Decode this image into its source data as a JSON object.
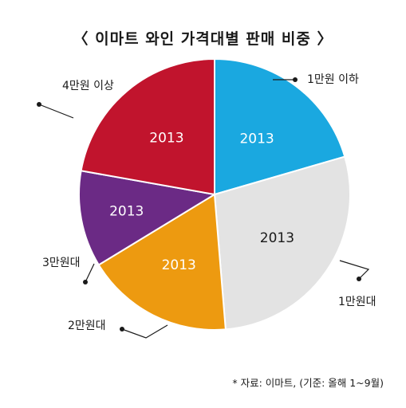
{
  "title": "〈 이마트 와인 가격대별 판매 비중 〉",
  "source_note": "* 자료: 이마트, (기준: 올해 1~9월)",
  "chart_data": {
    "type": "pie",
    "title": "〈 이마트 와인 가격대별 판매 비중 〉",
    "slices": [
      {
        "category": "1만원 이하",
        "label": "2013",
        "share": 0.205,
        "color": "#1aa8e0",
        "label_dark": false
      },
      {
        "category": "1만원대",
        "label": "2013",
        "share": 0.282,
        "color": "#e3e3e3",
        "label_dark": true
      },
      {
        "category": "2만원대",
        "label": "2013",
        "share": 0.176,
        "color": "#ed9a10",
        "label_dark": false
      },
      {
        "category": "3만원대",
        "label": "2013",
        "share": 0.115,
        "color": "#6b2a85",
        "label_dark": false
      },
      {
        "category": "4만원 이상",
        "label": "2013",
        "share": 0.222,
        "color": "#c1142d",
        "label_dark": false
      }
    ]
  }
}
